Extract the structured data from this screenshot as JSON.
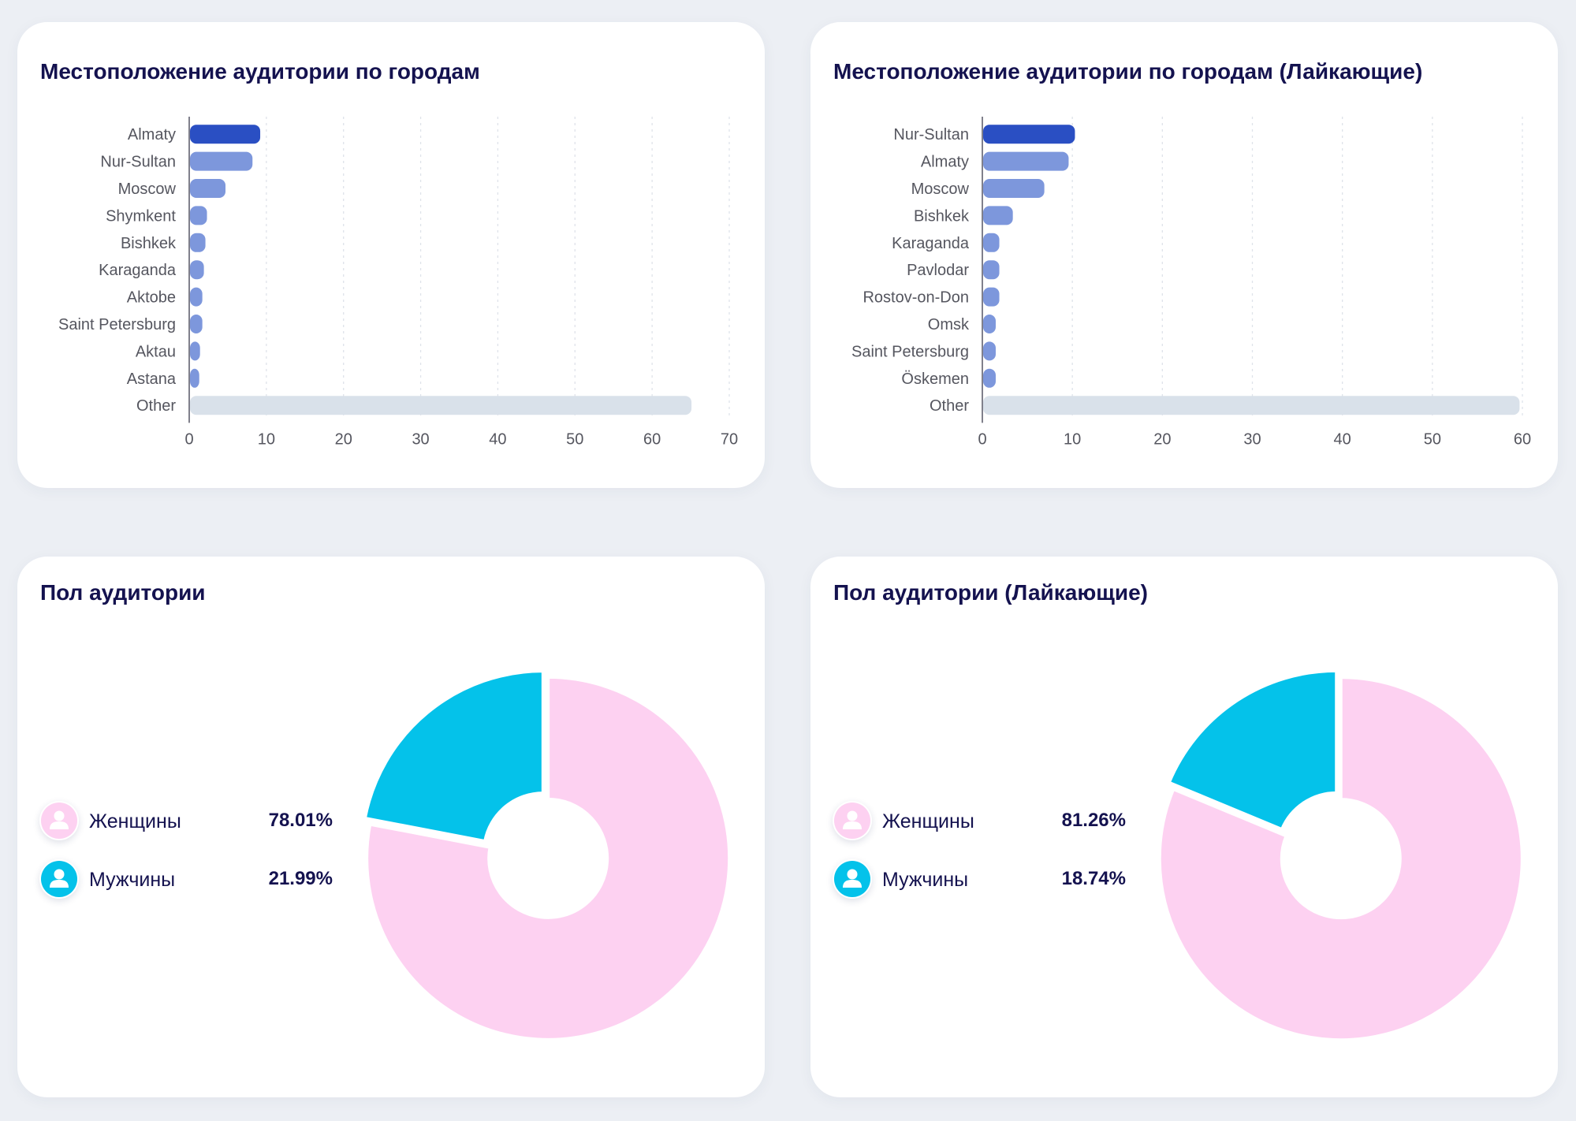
{
  "colors": {
    "bar_top": "#2a4fc3",
    "bar_regular": "#7d97dc",
    "bar_other": "#d9e1ea",
    "women": "#fdd1f1",
    "men": "#04c2ea",
    "title": "#14124f"
  },
  "cards": {
    "city_all_title": "Местоположение аудитории по городам",
    "city_likers_title": "Местоположение аудитории по городам (Лайкающие)",
    "gender_all_title": "Пол аудитории",
    "gender_likers_title": "Пол аудитории (Лайкающие)"
  },
  "gender_all": {
    "women_label": "Женщины",
    "women_value": "78.01%",
    "men_label": "Мужчины",
    "men_value": "21.99%",
    "women_icon": "user-icon",
    "men_icon": "user-icon"
  },
  "gender_likers": {
    "women_label": "Женщины",
    "women_value": "81.26%",
    "men_label": "Мужчины",
    "men_value": "18.74%",
    "women_icon": "user-icon",
    "men_icon": "user-icon"
  },
  "chart_data": [
    {
      "type": "bar",
      "orientation": "horizontal",
      "title": "Местоположение аудитории по городам",
      "categories": [
        "Almaty",
        "Nur-Sultan",
        "Moscow",
        "Shymkent",
        "Bishkek",
        "Karaganda",
        "Aktobe",
        "Saint Petersburg",
        "Aktau",
        "Astana",
        "Other"
      ],
      "values": [
        9.1,
        8.1,
        4.6,
        2.2,
        2.0,
        1.8,
        1.6,
        1.6,
        1.3,
        1.2,
        65.0
      ],
      "xlim": [
        0,
        70
      ],
      "xticks": [
        0,
        10,
        20,
        30,
        40,
        50,
        60,
        70
      ],
      "grid": true
    },
    {
      "type": "bar",
      "orientation": "horizontal",
      "title": "Местоположение аудитории по городам (Лайкающие)",
      "categories": [
        "Nur-Sultan",
        "Almaty",
        "Moscow",
        "Bishkek",
        "Karaganda",
        "Pavlodar",
        "Rostov-on-Don",
        "Omsk",
        "Saint Petersburg",
        "Öskemen",
        "Other"
      ],
      "values": [
        10.2,
        9.5,
        6.8,
        3.3,
        1.8,
        1.8,
        1.8,
        1.4,
        1.4,
        1.4,
        59.6
      ],
      "xlim": [
        0,
        60
      ],
      "xticks": [
        0,
        10,
        20,
        30,
        40,
        50,
        60
      ],
      "grid": true
    },
    {
      "type": "pie",
      "title": "Пол аудитории",
      "donut": true,
      "categories": [
        "Женщины",
        "Мужчины"
      ],
      "values": [
        78.01,
        21.99
      ]
    },
    {
      "type": "pie",
      "title": "Пол аудитории (Лайкающие)",
      "donut": true,
      "categories": [
        "Женщины",
        "Мужчины"
      ],
      "values": [
        81.26,
        18.74
      ]
    }
  ]
}
